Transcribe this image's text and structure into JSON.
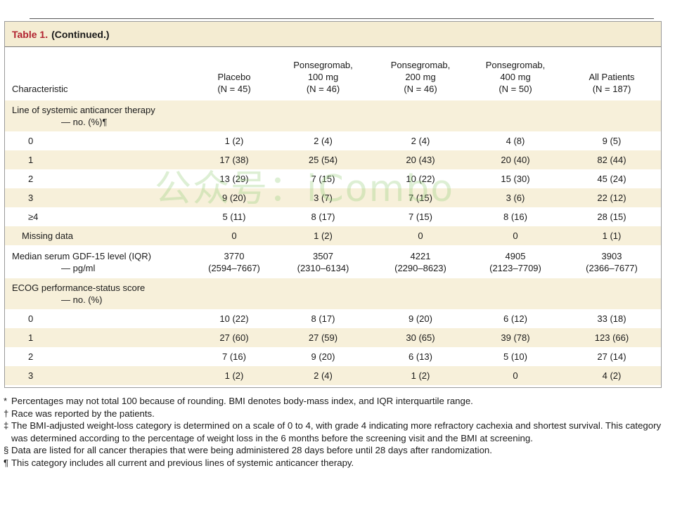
{
  "table": {
    "title_label": "Table 1.",
    "title_text": "(Continued.)",
    "headers": [
      {
        "lines": [
          "Characteristic"
        ]
      },
      {
        "lines": [
          "Placebo",
          "(N = 45)"
        ]
      },
      {
        "lines": [
          "Ponsegromab,",
          "100 mg",
          "(N = 46)"
        ]
      },
      {
        "lines": [
          "Ponsegromab,",
          "200 mg",
          "(N = 46)"
        ]
      },
      {
        "lines": [
          "Ponsegromab,",
          "400 mg",
          "(N = 50)"
        ]
      },
      {
        "lines": [
          "All Patients",
          "(N = 187)"
        ]
      }
    ],
    "rows": [
      {
        "label": [
          "Line of systemic anticancer therapy",
          "— no. (%)¶"
        ],
        "values": [
          "",
          "",
          "",
          "",
          ""
        ]
      },
      {
        "label": [
          "0"
        ],
        "values": [
          "1 (2)",
          "2 (4)",
          "2 (4)",
          "4 (8)",
          "9 (5)"
        ]
      },
      {
        "label": [
          "1"
        ],
        "values": [
          "17 (38)",
          "25 (54)",
          "20 (43)",
          "20 (40)",
          "82 (44)"
        ]
      },
      {
        "label": [
          "2"
        ],
        "values": [
          "13 (29)",
          "7 (15)",
          "10 (22)",
          "15 (30)",
          "45 (24)"
        ]
      },
      {
        "label": [
          "3"
        ],
        "values": [
          "9 (20)",
          "3 (7)",
          "7 (15)",
          "3 (6)",
          "22 (12)"
        ]
      },
      {
        "label": [
          "≥4"
        ],
        "values": [
          "5 (11)",
          "8 (17)",
          "7 (15)",
          "8 (16)",
          "28 (15)"
        ]
      },
      {
        "label": [
          "Missing data"
        ],
        "values": [
          "0",
          "1 (2)",
          "0",
          "0",
          "1 (1)"
        ]
      },
      {
        "label": [
          "Median serum GDF-15 level (IQR)",
          "— pg/ml"
        ],
        "values": [
          [
            "3770",
            "(2594–7667)"
          ],
          [
            "3507",
            "(2310–6134)"
          ],
          [
            "4221",
            "(2290–8623)"
          ],
          [
            "4905",
            "(2123–7709)"
          ],
          [
            "3903",
            "(2366–7677)"
          ]
        ]
      },
      {
        "label": [
          "ECOG performance-status score",
          "— no. (%)"
        ],
        "values": [
          "",
          "",
          "",
          "",
          ""
        ]
      },
      {
        "label": [
          "0"
        ],
        "values": [
          "10 (22)",
          "8 (17)",
          "9 (20)",
          "6 (12)",
          "33 (18)"
        ]
      },
      {
        "label": [
          "1"
        ],
        "values": [
          "27 (60)",
          "27 (59)",
          "30 (65)",
          "39 (78)",
          "123 (66)"
        ]
      },
      {
        "label": [
          "2"
        ],
        "values": [
          "7 (16)",
          "9 (20)",
          "6 (13)",
          "5 (10)",
          "27 (14)"
        ]
      },
      {
        "label": [
          "3"
        ],
        "values": [
          "1 (2)",
          "2 (4)",
          "1 (2)",
          "0",
          "4 (2)"
        ]
      }
    ]
  },
  "footnotes": [
    {
      "symbol": "*",
      "text": "Percentages may not total 100 because of rounding. BMI denotes body-mass index, and IQR interquartile range."
    },
    {
      "symbol": "†",
      "text": "Race was reported by the patients."
    },
    {
      "symbol": "‡",
      "text": "The BMI-adjusted weight-loss category is determined on a scale of 0 to 4, with grade 4 indicating more refractory cachexia and shortest survival. This category was determined according to the percentage of weight loss in the 6 months before the screening visit and the BMI at screening."
    },
    {
      "symbol": "§",
      "text": "Data are listed for all cancer therapies that were being administered 28 days before until 28 days after randomization."
    },
    {
      "symbol": "¶",
      "text": "This category includes all current and previous lines of systemic anticancer therapy."
    }
  ],
  "watermark": "公众号：iCombo"
}
